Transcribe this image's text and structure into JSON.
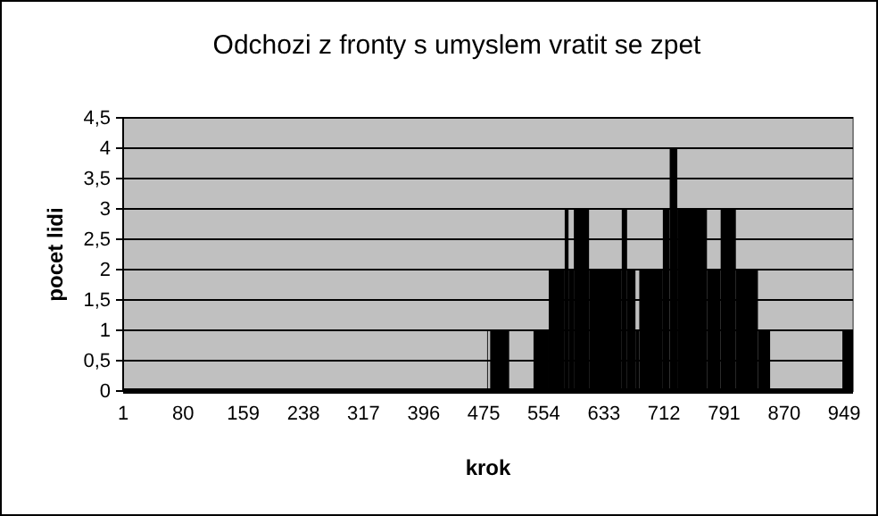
{
  "chart_data": {
    "type": "histogram",
    "title": "Odchozi z fronty s umyslem vratit se zpet",
    "xlabel": "krok",
    "ylabel": "pocet lidi",
    "bins": [
      479.5,
      480.5,
      483.5,
      508.5,
      540.5,
      560.5,
      581.5,
      586.5,
      593.5,
      613.5,
      656.5,
      663.5,
      674.5,
      679.5,
      710.5,
      719.5,
      729.5,
      768.5,
      786.5,
      806.5,
      835.5,
      851.5,
      946.5,
      960.5
    ],
    "values": [
      1,
      0,
      1,
      0,
      1,
      2,
      3,
      2,
      3,
      2,
      3,
      2,
      1,
      2,
      3,
      4,
      3,
      2,
      3,
      2,
      1,
      0,
      1
    ],
    "color": "#000000",
    "xlim": [
      1,
      960.5
    ],
    "xticks": [
      1,
      80,
      159,
      238,
      317,
      396,
      475,
      554,
      633,
      712,
      791,
      870,
      949
    ],
    "ylim": [
      0,
      4.5
    ],
    "yticks": [
      0,
      {
        "value": 0.5,
        "label": "0,5"
      },
      1,
      {
        "value": 1.5,
        "label": "1,5"
      },
      2,
      {
        "value": 2.5,
        "label": "2,5"
      },
      3,
      {
        "value": 3.5,
        "label": "3,5"
      },
      4,
      {
        "value": 4.5,
        "label": "4,5"
      }
    ],
    "grid": "y"
  }
}
